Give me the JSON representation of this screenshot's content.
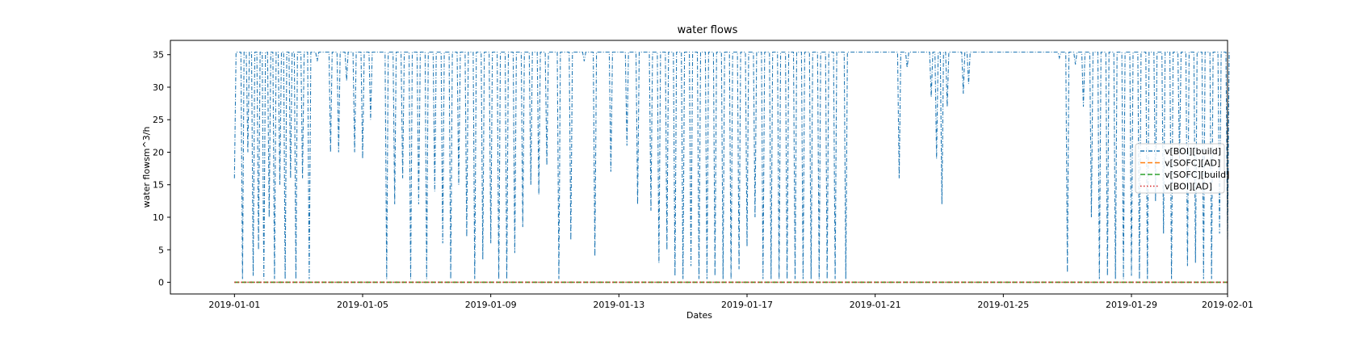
{
  "chart_data": {
    "type": "line",
    "title": "water flows",
    "xlabel": "Dates",
    "ylabel": "water flowsm^3/h",
    "x_range": [
      "2018-12-30",
      "2019-02-01"
    ],
    "ylim": [
      -1.8,
      37.2
    ],
    "xticks": [
      "2019-01-01",
      "2019-01-05",
      "2019-01-09",
      "2019-01-13",
      "2019-01-17",
      "2019-01-21",
      "2019-01-25",
      "2019-01-29",
      "2019-02-01"
    ],
    "yticks": [
      "0",
      "5",
      "10",
      "15",
      "20",
      "25",
      "30",
      "35"
    ],
    "grid": false,
    "legend_position": "center-right",
    "series": [
      {
        "name": "v[BOI][build]",
        "color": "#1f77b4",
        "linestyle": "dashdot",
        "baseline": 35.4,
        "dips": [
          [
            "2019-01-01 00:00",
            16
          ],
          [
            "2019-01-01 06:00",
            0.5
          ],
          [
            "2019-01-01 10:00",
            20
          ],
          [
            "2019-01-01 14:00",
            1
          ],
          [
            "2019-01-01 18:00",
            5
          ],
          [
            "2019-01-01 22:00",
            0.5
          ],
          [
            "2019-01-02 02:00",
            10
          ],
          [
            "2019-01-02 06:00",
            0.5
          ],
          [
            "2019-01-02 10:00",
            15
          ],
          [
            "2019-01-02 14:00",
            0.5
          ],
          [
            "2019-01-02 18:00",
            16
          ],
          [
            "2019-01-02 22:00",
            0.5
          ],
          [
            "2019-01-03 03:00",
            16
          ],
          [
            "2019-01-03 08:00",
            0.5
          ],
          [
            "2019-01-03 14:00",
            34
          ],
          [
            "2019-01-04 00:00",
            20
          ],
          [
            "2019-01-04 06:00",
            20
          ],
          [
            "2019-01-04 12:00",
            31
          ],
          [
            "2019-01-04 18:00",
            20
          ],
          [
            "2019-01-05 00:00",
            19
          ],
          [
            "2019-01-05 06:00",
            25
          ],
          [
            "2019-01-05 18:00",
            0.5
          ],
          [
            "2019-01-06 00:00",
            12
          ],
          [
            "2019-01-06 06:00",
            16
          ],
          [
            "2019-01-06 12:00",
            0.5
          ],
          [
            "2019-01-06 18:00",
            12
          ],
          [
            "2019-01-07 00:00",
            0.5
          ],
          [
            "2019-01-07 06:00",
            14
          ],
          [
            "2019-01-07 12:00",
            6
          ],
          [
            "2019-01-07 18:00",
            0.5
          ],
          [
            "2019-01-08 00:00",
            15
          ],
          [
            "2019-01-08 06:00",
            7
          ],
          [
            "2019-01-08 12:00",
            0.5
          ],
          [
            "2019-01-08 18:00",
            3.5
          ],
          [
            "2019-01-09 00:00",
            6
          ],
          [
            "2019-01-09 06:00",
            0.5
          ],
          [
            "2019-01-09 12:00",
            0.5
          ],
          [
            "2019-01-09 18:00",
            4.5
          ],
          [
            "2019-01-10 00:00",
            8.5
          ],
          [
            "2019-01-10 06:00",
            15
          ],
          [
            "2019-01-10 12:00",
            13.5
          ],
          [
            "2019-01-10 18:00",
            18
          ],
          [
            "2019-01-11 03:00",
            0.5
          ],
          [
            "2019-01-11 12:00",
            6.5
          ],
          [
            "2019-01-11 22:00",
            34
          ],
          [
            "2019-01-12 06:00",
            4
          ],
          [
            "2019-01-12 18:00",
            17
          ],
          [
            "2019-01-13 06:00",
            21
          ],
          [
            "2019-01-13 14:00",
            12
          ],
          [
            "2019-01-14 00:00",
            11
          ],
          [
            "2019-01-14 06:00",
            3
          ],
          [
            "2019-01-14 12:00",
            5
          ],
          [
            "2019-01-14 18:00",
            1
          ],
          [
            "2019-01-15 00:00",
            0.5
          ],
          [
            "2019-01-15 06:00",
            2.5
          ],
          [
            "2019-01-15 12:00",
            0.5
          ],
          [
            "2019-01-15 18:00",
            0.5
          ],
          [
            "2019-01-16 00:00",
            1
          ],
          [
            "2019-01-16 06:00",
            0.5
          ],
          [
            "2019-01-16 12:00",
            0.5
          ],
          [
            "2019-01-16 18:00",
            2
          ],
          [
            "2019-01-17 00:00",
            5.5
          ],
          [
            "2019-01-17 06:00",
            10
          ],
          [
            "2019-01-17 12:00",
            0.5
          ],
          [
            "2019-01-17 18:00",
            0.5
          ],
          [
            "2019-01-18 00:00",
            0.5
          ],
          [
            "2019-01-18 06:00",
            0.5
          ],
          [
            "2019-01-18 12:00",
            0.5
          ],
          [
            "2019-01-18 18:00",
            0.5
          ],
          [
            "2019-01-19 00:00",
            0.5
          ],
          [
            "2019-01-19 06:00",
            0.5
          ],
          [
            "2019-01-19 12:00",
            0.5
          ],
          [
            "2019-01-19 18:00",
            0.5
          ],
          [
            "2019-01-20 02:00",
            0.5
          ],
          [
            "2019-01-21 18:00",
            16
          ],
          [
            "2019-01-22 00:00",
            33
          ],
          [
            "2019-01-22 18:00",
            28.5
          ],
          [
            "2019-01-22 22:00",
            19
          ],
          [
            "2019-01-23 02:00",
            12
          ],
          [
            "2019-01-23 06:00",
            27
          ],
          [
            "2019-01-23 18:00",
            29
          ],
          [
            "2019-01-23 22:00",
            30.5
          ],
          [
            "2019-01-26 18:00",
            34.5
          ],
          [
            "2019-01-27 00:00",
            1.5
          ],
          [
            "2019-01-27 06:00",
            33.5
          ],
          [
            "2019-01-27 12:00",
            27
          ],
          [
            "2019-01-27 18:00",
            10
          ],
          [
            "2019-01-28 00:00",
            0.5
          ],
          [
            "2019-01-28 06:00",
            1
          ],
          [
            "2019-01-28 12:00",
            0.5
          ],
          [
            "2019-01-28 18:00",
            0.5
          ],
          [
            "2019-01-29 00:00",
            1
          ],
          [
            "2019-01-29 06:00",
            0.5
          ],
          [
            "2019-01-29 12:00",
            0.5
          ],
          [
            "2019-01-29 18:00",
            12.5
          ],
          [
            "2019-01-30 00:00",
            7.5
          ],
          [
            "2019-01-30 06:00",
            0.5
          ],
          [
            "2019-01-30 12:00",
            19
          ],
          [
            "2019-01-30 18:00",
            2.5
          ],
          [
            "2019-01-31 00:00",
            3
          ],
          [
            "2019-01-31 06:00",
            0.5
          ],
          [
            "2019-01-31 12:00",
            0.5
          ],
          [
            "2019-01-31 18:00",
            7.5
          ],
          [
            "2019-02-01 00:00",
            6.5
          ]
        ]
      },
      {
        "name": "v[SOFC][AD]",
        "color": "#ff7f0e",
        "linestyle": "dashed",
        "value": 0
      },
      {
        "name": "v[SOFC][build]",
        "color": "#2ca02c",
        "linestyle": "dashed",
        "value": 0
      },
      {
        "name": "v[BOI][AD]",
        "color": "#d62728",
        "linestyle": "dotted",
        "value": 0
      }
    ]
  }
}
